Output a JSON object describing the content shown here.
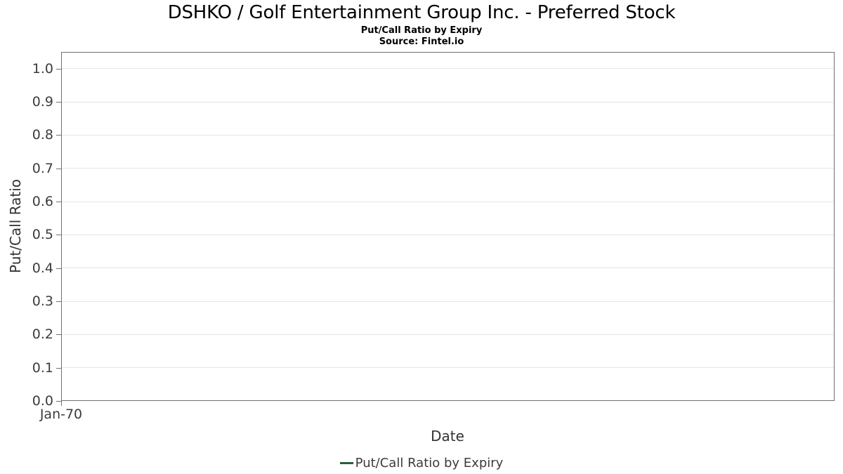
{
  "chart_data": {
    "type": "line",
    "title": "DSHKO / Golf Entertainment Group Inc. - Preferred Stock",
    "subtitle": "Put/Call Ratio by Expiry",
    "source": "Source: Fintel.io",
    "xlabel": "Date",
    "ylabel": "Put/Call Ratio",
    "legend": [
      "Put/Call Ratio by Expiry"
    ],
    "legend_position": "bottom-center",
    "grid": "horizontal",
    "ylim": [
      0,
      1.05
    ],
    "y_ticks": [
      0.0,
      0.1,
      0.2,
      0.3,
      0.4,
      0.5,
      0.6,
      0.7,
      0.8,
      0.9,
      1.0
    ],
    "y_tick_labels": [
      "0.0",
      "0.1",
      "0.2",
      "0.3",
      "0.4",
      "0.5",
      "0.6",
      "0.7",
      "0.8",
      "0.9",
      "1.0"
    ],
    "x_tick_labels": [
      "Jan-70"
    ],
    "series": [
      {
        "name": "Put/Call Ratio by Expiry",
        "color": "#2b5f34",
        "x": [],
        "values": []
      }
    ],
    "colors": {
      "series_line": "#2b5f34",
      "gridline": "#e5e5e5",
      "plot_border": "#707070",
      "tick_text": "#3c3c3c",
      "axis_label_text": "#333333",
      "title_text": "#000000",
      "background": "#ffffff"
    }
  }
}
